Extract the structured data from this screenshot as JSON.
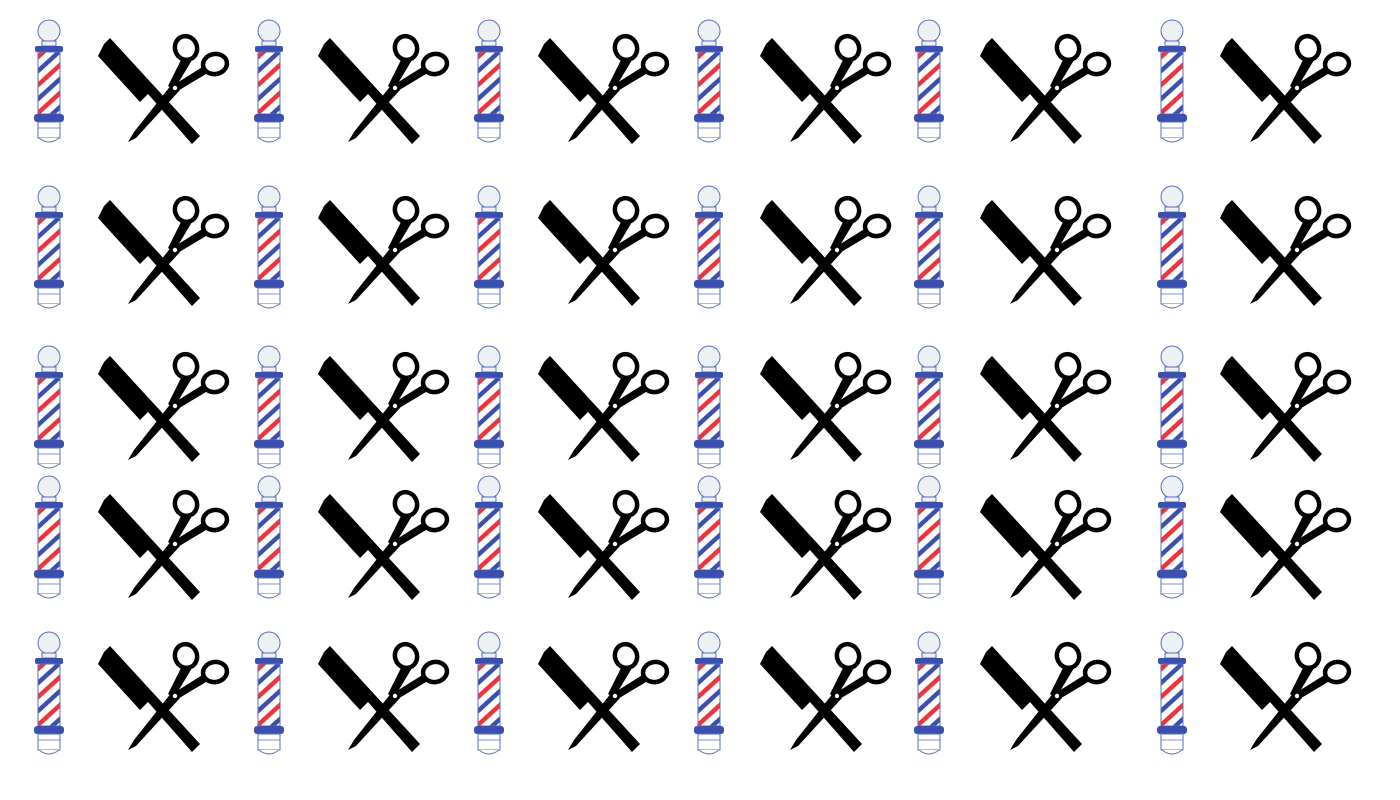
{
  "pattern": {
    "rows": 5,
    "pairs_per_row": 6,
    "motifs": [
      "barber-pole-icon",
      "comb-and-scissors-icon"
    ]
  },
  "colors": {
    "background": "#ffffff",
    "stripe_red": "#f0333b",
    "stripe_blue": "#3a4fae",
    "pole_outline": "#5a6fc0",
    "pole_cap": "#eef1f4",
    "tools": "#000000"
  }
}
